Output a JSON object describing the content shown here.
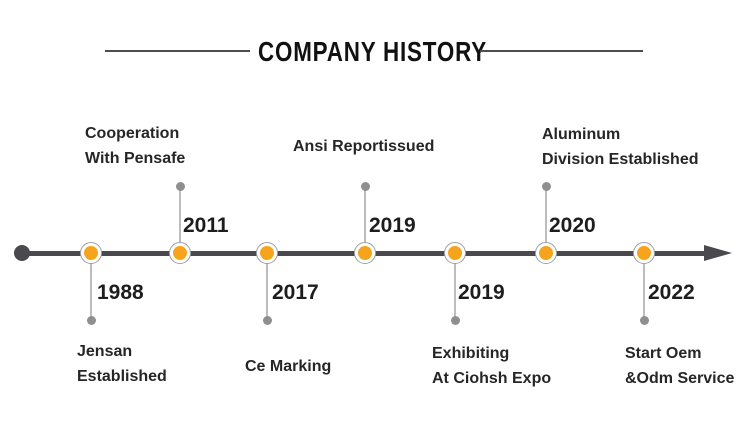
{
  "page": {
    "background": "#ffffff"
  },
  "header": {
    "title": "COMPANY HISTORY"
  },
  "colors": {
    "rule": "#4d4d4d",
    "timeline_line": "#4a4a4e",
    "node_fill": "#f6a41b",
    "node_ring": "#ffffff",
    "node_border": "#a0a0a0",
    "stem": "#bdbdbd",
    "stem_end_dot": "#8f8f8f",
    "year_text": "#1d1d1d",
    "label_text": "#262626"
  },
  "timeline": {
    "direction": "left-to-right",
    "events": [
      {
        "year": "1988",
        "position": "below",
        "label_lines": [
          "Jensan",
          "Established"
        ]
      },
      {
        "year": "2011",
        "position": "above",
        "label_lines": [
          "Cooperation",
          "With Pensafe"
        ]
      },
      {
        "year": "2017",
        "position": "below",
        "label_lines": [
          "Ce Marking"
        ]
      },
      {
        "year": "2019",
        "position": "above",
        "label_lines": [
          "Ansi Reportissued"
        ]
      },
      {
        "year": "2019",
        "position": "below",
        "label_lines": [
          "Exhibiting",
          "At Ciohsh Expo"
        ]
      },
      {
        "year": "2020",
        "position": "above",
        "label_lines": [
          "Aluminum",
          "Division Established"
        ]
      },
      {
        "year": "2022",
        "position": "below",
        "label_lines": [
          "Start Oem",
          "&Odm Service"
        ]
      }
    ]
  }
}
